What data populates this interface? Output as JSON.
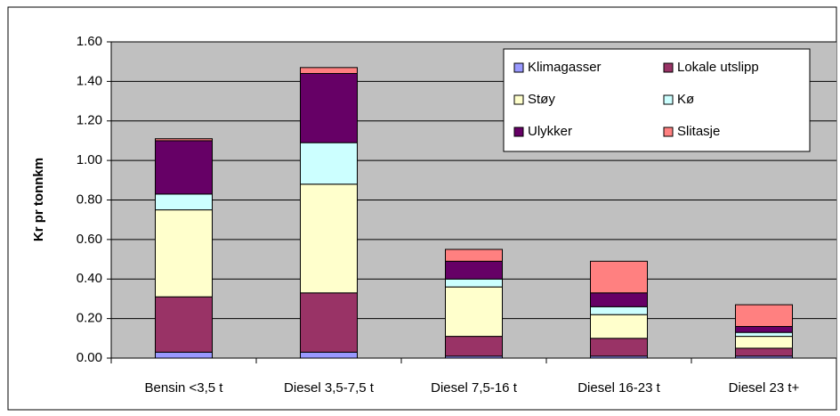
{
  "chart_data": {
    "type": "stacked_bar",
    "y_label": "Kr pr tonnkm",
    "categories": [
      "Bensin <3,5 t",
      "Diesel 3,5-7,5 t",
      "Diesel 7,5-16 t",
      "Diesel 16-23 t",
      "Diesel 23 t+"
    ],
    "series": [
      {
        "name": "Klimagasser",
        "color": "#9999ff",
        "values": [
          0.03,
          0.03,
          0.01,
          0.01,
          0.01
        ]
      },
      {
        "name": "Lokale utslipp",
        "color": "#993366",
        "values": [
          0.28,
          0.3,
          0.1,
          0.09,
          0.04
        ]
      },
      {
        "name": "Støy",
        "color": "#ffffcc",
        "values": [
          0.44,
          0.55,
          0.25,
          0.12,
          0.06
        ]
      },
      {
        "name": "Kø",
        "color": "#ccffff",
        "values": [
          0.08,
          0.21,
          0.04,
          0.04,
          0.02
        ]
      },
      {
        "name": "Ulykker",
        "color": "#660066",
        "values": [
          0.27,
          0.35,
          0.09,
          0.07,
          0.03
        ]
      },
      {
        "name": "Slitasje",
        "color": "#ff8080",
        "values": [
          0.01,
          0.03,
          0.06,
          0.16,
          0.11
        ]
      }
    ],
    "ylim": [
      0,
      1.6
    ],
    "yticks": [
      {
        "value": 0,
        "label": "0.00"
      },
      {
        "value": 0.2,
        "label": "0.20"
      },
      {
        "value": 0.4,
        "label": "0.40"
      },
      {
        "value": 0.6,
        "label": "0.60"
      },
      {
        "value": 0.8,
        "label": "0.80"
      },
      {
        "value": 1.0,
        "label": "1.00"
      },
      {
        "value": 1.2,
        "label": "1.20"
      },
      {
        "value": 1.4,
        "label": "1.40"
      },
      {
        "value": 1.6,
        "label": "1.60"
      }
    ],
    "grid": true
  }
}
